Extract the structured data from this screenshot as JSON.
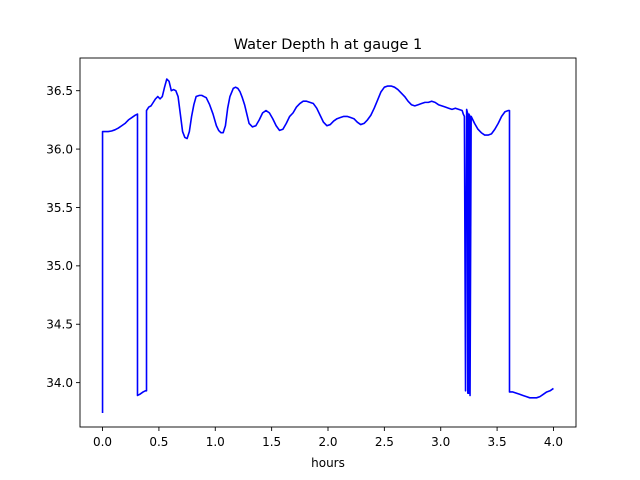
{
  "chart_data": {
    "type": "line",
    "title": "Water Depth h at gauge 1",
    "xlabel": "hours",
    "ylabel": "",
    "xlim": [
      -0.2,
      4.2
    ],
    "ylim": [
      33.62,
      36.78
    ],
    "xticks": [
      0.0,
      0.5,
      1.0,
      1.5,
      2.0,
      2.5,
      3.0,
      3.5,
      4.0
    ],
    "xtick_labels": [
      "0.0",
      "0.5",
      "1.0",
      "1.5",
      "2.0",
      "2.5",
      "3.0",
      "3.5",
      "4.0"
    ],
    "yticks": [
      34.0,
      34.5,
      35.0,
      35.5,
      36.0,
      36.5
    ],
    "ytick_labels": [
      "34.0",
      "34.5",
      "35.0",
      "35.5",
      "36.0",
      "36.5"
    ],
    "grid": false,
    "series": [
      {
        "color": "#0000ff",
        "x": [
          0.0,
          0.0,
          0.02,
          0.05,
          0.08,
          0.11,
          0.14,
          0.17,
          0.2,
          0.23,
          0.26,
          0.29,
          0.31,
          0.31,
          0.33,
          0.36,
          0.38,
          0.39,
          0.39,
          0.41,
          0.43,
          0.45,
          0.47,
          0.49,
          0.51,
          0.53,
          0.55,
          0.57,
          0.59,
          0.61,
          0.63,
          0.65,
          0.67,
          0.69,
          0.71,
          0.73,
          0.75,
          0.77,
          0.79,
          0.81,
          0.83,
          0.86,
          0.88,
          0.9,
          0.92,
          0.95,
          0.98,
          1.01,
          1.03,
          1.05,
          1.07,
          1.09,
          1.11,
          1.13,
          1.16,
          1.18,
          1.2,
          1.22,
          1.24,
          1.26,
          1.28,
          1.3,
          1.33,
          1.36,
          1.39,
          1.42,
          1.45,
          1.48,
          1.51,
          1.54,
          1.57,
          1.6,
          1.63,
          1.66,
          1.69,
          1.72,
          1.75,
          1.78,
          1.81,
          1.84,
          1.87,
          1.9,
          1.93,
          1.96,
          1.99,
          2.02,
          2.05,
          2.08,
          2.11,
          2.14,
          2.17,
          2.2,
          2.23,
          2.26,
          2.29,
          2.32,
          2.35,
          2.38,
          2.41,
          2.44,
          2.47,
          2.5,
          2.53,
          2.56,
          2.59,
          2.62,
          2.65,
          2.68,
          2.71,
          2.74,
          2.77,
          2.8,
          2.83,
          2.86,
          2.89,
          2.92,
          2.95,
          2.98,
          3.01,
          3.04,
          3.07,
          3.1,
          3.13,
          3.16,
          3.19,
          3.2,
          3.21,
          3.22,
          3.22,
          3.23,
          3.24,
          3.24,
          3.25,
          3.25,
          3.26,
          3.26,
          3.27,
          3.3,
          3.33,
          3.36,
          3.39,
          3.42,
          3.45,
          3.48,
          3.51,
          3.54,
          3.57,
          3.6,
          3.61,
          3.61,
          3.64,
          3.67,
          3.7,
          3.73,
          3.76,
          3.79,
          3.82,
          3.85,
          3.88,
          3.91,
          3.94,
          3.97,
          4.0
        ],
        "y": [
          33.74,
          36.15,
          36.15,
          36.15,
          36.155,
          36.165,
          36.18,
          36.2,
          36.22,
          36.25,
          36.27,
          36.29,
          36.3,
          33.89,
          33.9,
          33.92,
          33.93,
          33.93,
          36.33,
          36.36,
          36.37,
          36.4,
          36.43,
          36.45,
          36.43,
          36.45,
          36.53,
          36.6,
          36.58,
          36.5,
          36.51,
          36.5,
          36.45,
          36.3,
          36.15,
          36.1,
          36.09,
          36.15,
          36.28,
          36.38,
          36.45,
          36.46,
          36.46,
          36.45,
          36.44,
          36.38,
          36.3,
          36.2,
          36.16,
          36.14,
          36.14,
          36.2,
          36.35,
          36.45,
          36.52,
          36.53,
          36.52,
          36.49,
          36.44,
          36.38,
          36.3,
          36.22,
          36.19,
          36.2,
          36.25,
          36.31,
          36.33,
          36.31,
          36.26,
          36.2,
          36.16,
          36.17,
          36.22,
          36.28,
          36.31,
          36.36,
          36.39,
          36.41,
          36.41,
          36.4,
          36.39,
          36.35,
          36.29,
          36.23,
          36.2,
          36.21,
          36.24,
          36.26,
          36.27,
          36.28,
          36.28,
          36.27,
          36.26,
          36.23,
          36.21,
          36.22,
          36.25,
          36.29,
          36.35,
          36.42,
          36.49,
          36.53,
          36.54,
          36.54,
          36.53,
          36.51,
          36.48,
          36.45,
          36.41,
          36.38,
          36.37,
          36.38,
          36.39,
          36.4,
          36.4,
          36.41,
          36.4,
          36.38,
          36.37,
          36.36,
          36.35,
          36.34,
          36.35,
          36.34,
          36.33,
          36.3,
          36.28,
          33.95,
          33.93,
          36.34,
          36.3,
          33.91,
          33.91,
          36.3,
          36.28,
          33.89,
          36.28,
          36.22,
          36.17,
          36.14,
          36.12,
          36.12,
          36.13,
          36.17,
          36.22,
          36.28,
          36.32,
          36.33,
          36.33,
          33.92,
          33.92,
          33.91,
          33.9,
          33.89,
          33.88,
          33.87,
          33.87,
          33.87,
          33.88,
          33.9,
          33.92,
          33.93,
          33.95
        ]
      }
    ]
  }
}
